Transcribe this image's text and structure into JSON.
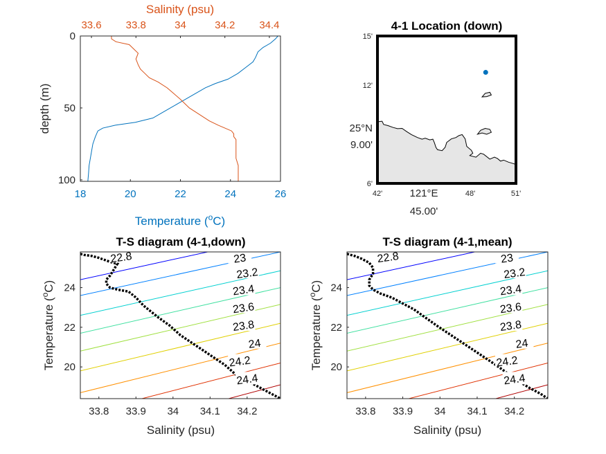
{
  "chart_data": [
    {
      "type": "line",
      "xlabel_bottom": "Temperature (",
      "xlabel_bottom_sup": "o",
      "xlabel_bottom_end": "C)",
      "xlabel_top": "Salinity (psu)",
      "ylabel": "depth (m)",
      "temp_ticks": [
        "18",
        "20",
        "22",
        "24",
        "26"
      ],
      "sal_ticks": [
        "33.6",
        "33.8",
        "34",
        "34.2",
        "34.4"
      ],
      "depth_ticks": [
        "0",
        "50",
        "100"
      ],
      "temp_range": [
        18,
        26
      ],
      "sal_range": [
        33.55,
        34.45
      ],
      "depth_range": [
        0,
        101
      ],
      "temperature_color": "#0072BD",
      "salinity_color": "#D95319",
      "temperature_profile": {
        "depth": [
          0,
          2,
          5,
          8,
          11,
          15,
          18,
          22,
          26,
          30,
          33,
          36,
          39,
          42,
          45,
          47,
          50,
          53,
          57,
          60,
          62,
          64,
          66,
          70,
          75,
          80,
          85,
          90,
          95,
          101
        ],
        "temp": [
          25.9,
          25.8,
          25.6,
          25.3,
          25.1,
          25.0,
          24.9,
          24.6,
          24.3,
          23.9,
          23.4,
          23.0,
          22.7,
          22.4,
          22.1,
          21.9,
          21.6,
          21.3,
          20.9,
          20.2,
          19.4,
          18.9,
          18.7,
          18.6,
          18.5,
          18.45,
          18.4,
          18.35,
          18.33,
          18.3
        ]
      },
      "salinity_profile": {
        "depth": [
          0,
          2,
          4,
          6,
          9,
          12,
          16,
          20,
          23,
          26,
          29,
          32,
          36,
          40,
          44,
          47,
          50,
          53,
          56,
          59,
          62,
          64,
          66,
          68,
          70,
          72,
          75,
          80,
          85,
          90,
          95,
          101
        ],
        "sal": [
          33.69,
          33.69,
          33.71,
          33.77,
          33.79,
          33.81,
          33.8,
          33.81,
          33.82,
          33.84,
          33.86,
          33.9,
          33.94,
          33.97,
          34.0,
          34.02,
          34.04,
          34.07,
          34.1,
          34.13,
          34.17,
          34.2,
          34.23,
          34.24,
          34.24,
          34.25,
          34.25,
          34.25,
          34.25,
          34.26,
          34.26,
          34.26
        ]
      }
    },
    {
      "type": "map",
      "title": "4-1 Location (down)",
      "lat_ticks": [
        "15'",
        "12'",
        "9.00'",
        "6'"
      ],
      "lat_deg_label": "25°N",
      "lon_ticks": [
        "42'",
        "121°E",
        "48'",
        "51'"
      ],
      "lon_sub_label": "45.00'",
      "lon_range": [
        121.7,
        121.85
      ],
      "lat_range": [
        25.1,
        25.25
      ],
      "station": {
        "lon": 121.8172,
        "lat": 25.213
      },
      "land_color": "#e6e6e6",
      "station_color": "#0072BD",
      "coastline": [
        [
          121.7,
          25.1627
        ],
        [
          121.705,
          25.1633
        ],
        [
          121.7067,
          25.16
        ],
        [
          121.7117,
          25.1587
        ],
        [
          121.7167,
          25.157
        ],
        [
          121.7217,
          25.1557
        ],
        [
          121.7267,
          25.156
        ],
        [
          121.7317,
          25.1527
        ],
        [
          121.7367,
          25.1497
        ],
        [
          121.7433,
          25.1467
        ],
        [
          121.7483,
          25.145
        ],
        [
          121.7517,
          25.146
        ],
        [
          121.7567,
          25.1443
        ],
        [
          121.76,
          25.145
        ],
        [
          121.7617,
          25.1413
        ],
        [
          121.7633,
          25.1367
        ],
        [
          121.765,
          25.1343
        ],
        [
          121.77,
          25.1333
        ],
        [
          121.7733,
          25.1367
        ],
        [
          121.775,
          25.1417
        ],
        [
          121.78,
          25.1453
        ],
        [
          121.785,
          25.1467
        ],
        [
          121.7883,
          25.1487
        ],
        [
          121.7917,
          25.1497
        ],
        [
          121.795,
          25.1453
        ],
        [
          121.7967,
          25.1377
        ],
        [
          121.8017,
          25.1337
        ],
        [
          121.8033,
          25.1307
        ],
        [
          121.8,
          25.1283
        ],
        [
          121.8067,
          25.1267
        ],
        [
          121.8117,
          25.1307
        ],
        [
          121.815,
          25.1297
        ],
        [
          121.8217,
          25.1247
        ],
        [
          121.8267,
          25.1267
        ],
        [
          121.83,
          25.1253
        ],
        [
          121.8333,
          25.1227
        ],
        [
          121.8367,
          25.1237
        ],
        [
          121.8417,
          25.1217
        ],
        [
          121.8467,
          25.1203
        ],
        [
          121.85,
          25.1193
        ]
      ],
      "land_closure": [
        [
          121.85,
          25.1
        ],
        [
          121.7,
          25.1
        ]
      ],
      "islands": [
        [
          [
            121.8083,
            25.15
          ],
          [
            121.8117,
            25.154
          ],
          [
            121.8167,
            25.156
          ],
          [
            121.8217,
            25.155
          ],
          [
            121.8233,
            25.152
          ],
          [
            121.8183,
            25.15
          ],
          [
            121.8133,
            25.1513
          ],
          [
            121.8083,
            25.15
          ]
        ],
        [
          [
            121.8133,
            25.188
          ],
          [
            121.8167,
            25.1917
          ],
          [
            121.8217,
            25.1927
          ],
          [
            121.8233,
            25.19
          ],
          [
            121.8183,
            25.1883
          ],
          [
            121.8133,
            25.188
          ]
        ]
      ]
    },
    {
      "type": "line",
      "title": "T-S diagram (4-1,down)",
      "xlabel": "Salinity (psu)",
      "ylabel": "Temperature (",
      "ylabel_sup": "o",
      "ylabel_end": "C)",
      "x_ticks": [
        "33.8",
        "33.9",
        "34",
        "34.1",
        "34.2"
      ],
      "y_ticks": [
        "20",
        "22",
        "24"
      ],
      "xlim": [
        33.75,
        34.29
      ],
      "ylim": [
        18.4,
        25.8
      ],
      "contours": [
        {
          "label": "22.8",
          "color": "#00008f",
          "start_y": 25.8,
          "slope": 1.4,
          "label_x": 33.86,
          "label_y": 25.55
        },
        {
          "label": "23",
          "color": "#0000ff",
          "start_y": 24.4,
          "slope": 2.2,
          "label_x": 34.18,
          "label_y": 25.5
        },
        {
          "label": "23.2",
          "color": "#0080ff",
          "start_y": 23.6,
          "slope": 2.2,
          "label_x": 34.2,
          "label_y": 24.75
        },
        {
          "label": "23.4",
          "color": "#00d0d0",
          "start_y": 22.6,
          "slope": 2.25,
          "label_x": 34.19,
          "label_y": 23.9
        },
        {
          "label": "23.6",
          "color": "#40e0a0",
          "start_y": 21.7,
          "slope": 2.3,
          "label_x": 34.19,
          "label_y": 23.0
        },
        {
          "label": "23.8",
          "color": "#a0e040",
          "start_y": 20.8,
          "slope": 2.35,
          "label_x": 34.19,
          "label_y": 22.1
        },
        {
          "label": "24",
          "color": "#e0d000",
          "start_y": 19.8,
          "slope": 2.4,
          "label_x": 34.22,
          "label_y": 21.2
        },
        {
          "label": "24.2",
          "color": "#ff9000",
          "start_y": 18.7,
          "slope": 2.5,
          "label_x": 34.18,
          "label_y": 20.3
        },
        {
          "label": "24.4",
          "color": "#e03000",
          "start_y": 17.6,
          "slope": 2.6,
          "label_x": 34.2,
          "label_y": 19.4
        },
        {
          "label": "",
          "color": "#b00000",
          "start_y": 16.4,
          "slope": 2.7,
          "label_x": null,
          "label_y": null
        }
      ],
      "ts_profile": {
        "sal": [
          33.75,
          33.76,
          33.78,
          33.8,
          33.83,
          33.85,
          33.84,
          33.83,
          33.82,
          33.82,
          33.83,
          33.85,
          33.88,
          33.9,
          33.92,
          33.94,
          33.96,
          33.99,
          34.02,
          34.06,
          34.1,
          34.14,
          34.17,
          34.2,
          34.23,
          34.26,
          34.29
        ],
        "temp": [
          25.7,
          25.65,
          25.6,
          25.5,
          25.3,
          25.2,
          24.9,
          24.6,
          24.4,
          24.2,
          24.0,
          23.9,
          23.8,
          23.5,
          23.1,
          22.8,
          22.5,
          22.1,
          21.6,
          21.1,
          20.6,
          20.1,
          19.6,
          19.3,
          19.0,
          18.7,
          18.4
        ]
      }
    },
    {
      "type": "line",
      "title": "T-S diagram (4-1,mean)",
      "xlabel": "Salinity (psu)",
      "ylabel": "Temperature (",
      "ylabel_sup": "o",
      "ylabel_end": "C)",
      "x_ticks": [
        "33.8",
        "33.9",
        "34",
        "34.1",
        "34.2"
      ],
      "y_ticks": [
        "20",
        "22",
        "24"
      ],
      "xlim": [
        33.75,
        34.29
      ],
      "ylim": [
        18.4,
        25.8
      ],
      "contours": [
        {
          "label": "22.8",
          "color": "#00008f",
          "start_y": 25.8,
          "slope": 1.4,
          "label_x": 33.86,
          "label_y": 25.55
        },
        {
          "label": "23",
          "color": "#0000ff",
          "start_y": 24.4,
          "slope": 2.2,
          "label_x": 34.18,
          "label_y": 25.5
        },
        {
          "label": "23.2",
          "color": "#0080ff",
          "start_y": 23.6,
          "slope": 2.2,
          "label_x": 34.2,
          "label_y": 24.75
        },
        {
          "label": "23.4",
          "color": "#00d0d0",
          "start_y": 22.6,
          "slope": 2.25,
          "label_x": 34.19,
          "label_y": 23.9
        },
        {
          "label": "23.6",
          "color": "#40e0a0",
          "start_y": 21.7,
          "slope": 2.3,
          "label_x": 34.19,
          "label_y": 23.0
        },
        {
          "label": "23.8",
          "color": "#a0e040",
          "start_y": 20.8,
          "slope": 2.35,
          "label_x": 34.19,
          "label_y": 22.1
        },
        {
          "label": "24",
          "color": "#e0d000",
          "start_y": 19.8,
          "slope": 2.4,
          "label_x": 34.22,
          "label_y": 21.2
        },
        {
          "label": "24.2",
          "color": "#ff9000",
          "start_y": 18.7,
          "slope": 2.5,
          "label_x": 34.18,
          "label_y": 20.3
        },
        {
          "label": "24.4",
          "color": "#e03000",
          "start_y": 17.6,
          "slope": 2.6,
          "label_x": 34.2,
          "label_y": 19.4
        },
        {
          "label": "",
          "color": "#b00000",
          "start_y": 16.4,
          "slope": 2.7,
          "label_x": null,
          "label_y": null
        }
      ],
      "ts_profile": {
        "sal": [
          33.75,
          33.77,
          33.79,
          33.81,
          33.82,
          33.82,
          33.81,
          33.81,
          33.82,
          33.84,
          33.87,
          33.9,
          33.93,
          33.96,
          33.99,
          34.03,
          34.07,
          34.11,
          34.15,
          34.18,
          34.21,
          34.24,
          34.27,
          34.29
        ],
        "temp": [
          25.7,
          25.6,
          25.45,
          25.25,
          25.0,
          24.7,
          24.4,
          24.1,
          23.9,
          23.7,
          23.5,
          23.2,
          22.9,
          22.5,
          22.1,
          21.6,
          21.1,
          20.6,
          20.1,
          19.7,
          19.3,
          18.95,
          18.65,
          18.4
        ]
      }
    }
  ]
}
